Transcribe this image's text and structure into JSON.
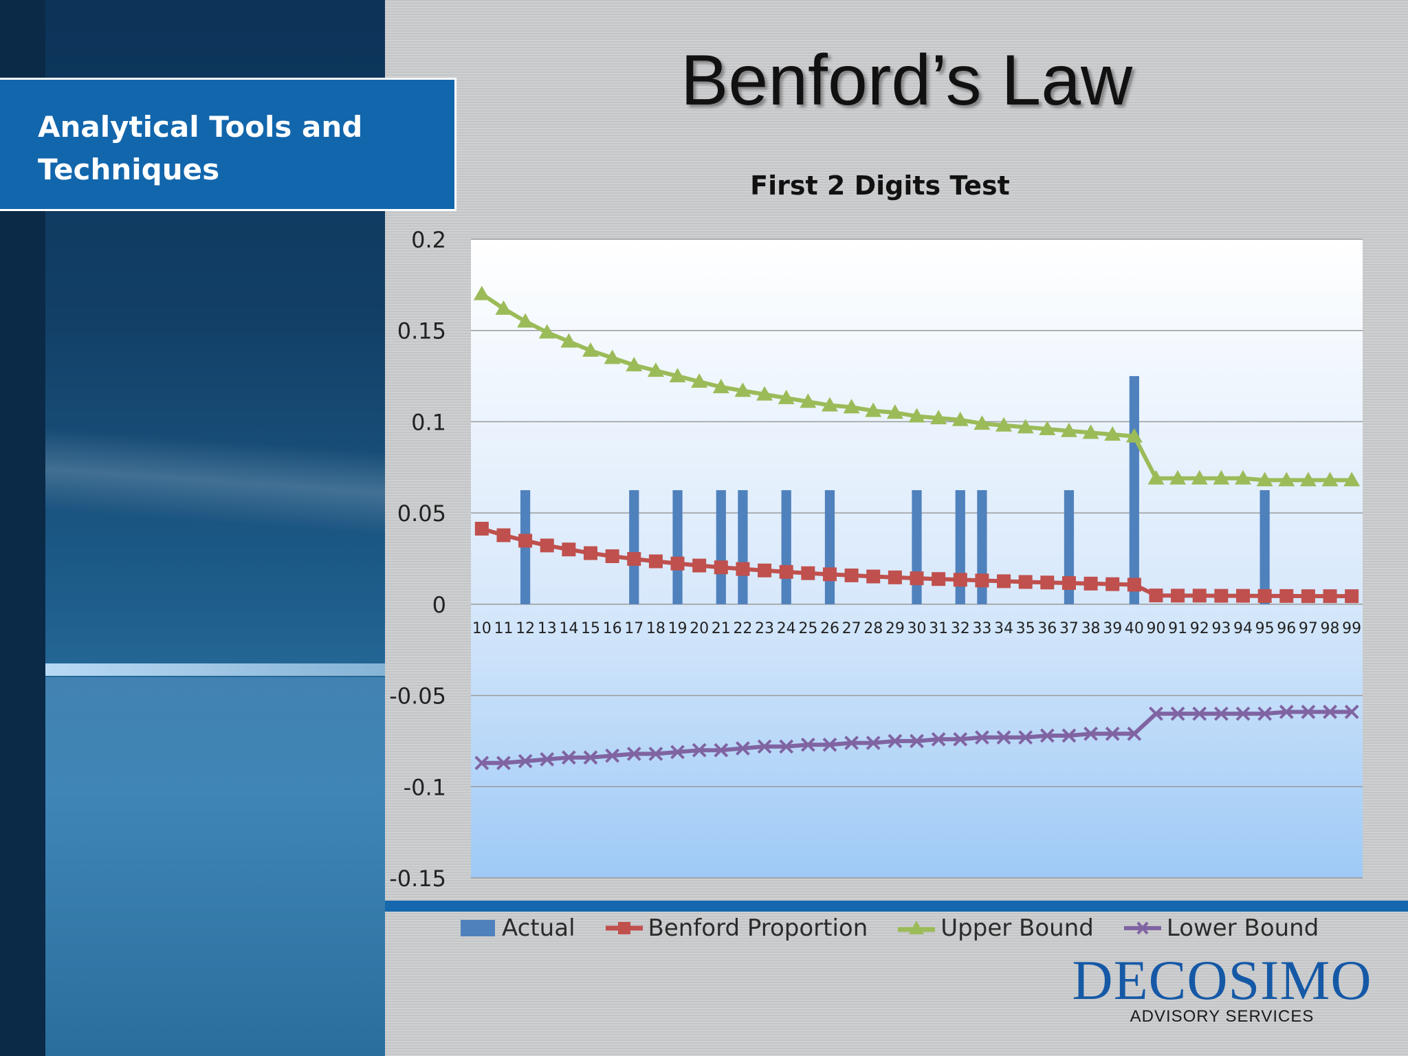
{
  "slide": {
    "title": "Benford’s Law",
    "subtitle": "Analytical Tools and Techniques"
  },
  "logo": {
    "name": "DECOSIMO",
    "tagline": "ADVISORY SERVICES"
  },
  "colors": {
    "actual": "#4f81bd",
    "benford": "#c0504d",
    "upper": "#9bbb59",
    "lower": "#8064a2",
    "subtitle_box": "#1266ac"
  },
  "chart_data": {
    "type": "bar",
    "title": "First 2 Digits Test",
    "ylim": [
      -0.15,
      0.2
    ],
    "yticks": [
      "0.2",
      "0.15",
      "0.1",
      "0.05",
      "0",
      "-0.05",
      "-0.1",
      "-0.15"
    ],
    "ytick_values": [
      0.2,
      0.15,
      0.1,
      0.05,
      0,
      -0.05,
      -0.1,
      -0.15
    ],
    "grid": true,
    "legend_position": "bottom",
    "categories": [
      "10",
      "11",
      "12",
      "13",
      "14",
      "15",
      "16",
      "17",
      "18",
      "19",
      "20",
      "21",
      "22",
      "23",
      "24",
      "25",
      "26",
      "27",
      "28",
      "29",
      "30",
      "31",
      "32",
      "33",
      "34",
      "35",
      "36",
      "37",
      "38",
      "39",
      "40",
      "90",
      "91",
      "92",
      "93",
      "94",
      "95",
      "96",
      "97",
      "98",
      "99"
    ],
    "series": [
      {
        "name": "Actual",
        "kind": "bar",
        "values": [
          0,
          0,
          0.0625,
          0,
          0,
          0,
          0,
          0.0625,
          0,
          0.0625,
          0,
          0.0625,
          0.0625,
          0,
          0.0625,
          0,
          0.0625,
          0,
          0,
          0,
          0.0625,
          0,
          0.0625,
          0.0625,
          0,
          0,
          0,
          0.0625,
          0,
          0,
          0.125,
          0,
          0,
          0,
          0,
          0,
          0.0625,
          0,
          0,
          0,
          0
        ]
      },
      {
        "name": "Benford Proportion",
        "kind": "line",
        "marker": "square",
        "values": [
          0.0414,
          0.0378,
          0.0348,
          0.0322,
          0.03,
          0.028,
          0.0263,
          0.0248,
          0.0235,
          0.0223,
          0.0212,
          0.0202,
          0.0193,
          0.0185,
          0.0177,
          0.017,
          0.0164,
          0.0158,
          0.0152,
          0.0147,
          0.0142,
          0.0138,
          0.0134,
          0.013,
          0.0126,
          0.0122,
          0.0119,
          0.0116,
          0.0113,
          0.011,
          0.0107,
          0.0048,
          0.0047,
          0.0047,
          0.0046,
          0.0046,
          0.0045,
          0.0045,
          0.0044,
          0.0044,
          0.0044
        ]
      },
      {
        "name": "Upper Bound",
        "kind": "line",
        "marker": "triangle",
        "values": [
          0.17,
          0.162,
          0.155,
          0.149,
          0.144,
          0.139,
          0.135,
          0.131,
          0.128,
          0.125,
          0.122,
          0.119,
          0.117,
          0.115,
          0.113,
          0.111,
          0.109,
          0.108,
          0.106,
          0.105,
          0.103,
          0.102,
          0.101,
          0.099,
          0.098,
          0.097,
          0.096,
          0.095,
          0.094,
          0.093,
          0.092,
          0.069,
          0.069,
          0.069,
          0.069,
          0.069,
          0.068,
          0.068,
          0.068,
          0.068,
          0.068
        ]
      },
      {
        "name": "Lower Bound",
        "kind": "line",
        "marker": "x",
        "values": [
          -0.087,
          -0.087,
          -0.086,
          -0.085,
          -0.084,
          -0.084,
          -0.083,
          -0.082,
          -0.082,
          -0.081,
          -0.08,
          -0.08,
          -0.079,
          -0.078,
          -0.078,
          -0.077,
          -0.077,
          -0.076,
          -0.076,
          -0.075,
          -0.075,
          -0.074,
          -0.074,
          -0.073,
          -0.073,
          -0.073,
          -0.072,
          -0.072,
          -0.071,
          -0.071,
          -0.071,
          -0.06,
          -0.06,
          -0.06,
          -0.06,
          -0.06,
          -0.06,
          -0.059,
          -0.059,
          -0.059,
          -0.059
        ]
      }
    ]
  }
}
